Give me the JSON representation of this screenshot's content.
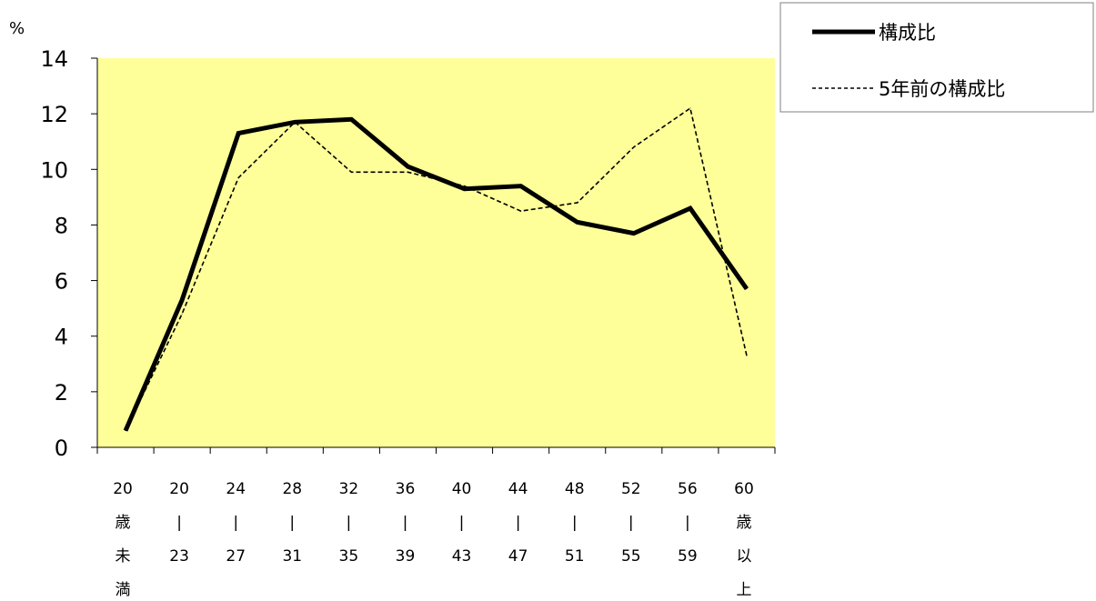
{
  "chart_data": {
    "type": "line",
    "unit_label": "%",
    "categories": [
      [
        "20",
        "歳",
        "未",
        "満"
      ],
      [
        "20",
        "|",
        "23"
      ],
      [
        "24",
        "|",
        "27"
      ],
      [
        "28",
        "|",
        "31"
      ],
      [
        "32",
        "|",
        "35"
      ],
      [
        "36",
        "|",
        "39"
      ],
      [
        "40",
        "|",
        "43"
      ],
      [
        "44",
        "|",
        "47"
      ],
      [
        "48",
        "|",
        "51"
      ],
      [
        "52",
        "|",
        "55"
      ],
      [
        "56",
        "|",
        "59"
      ],
      [
        "60",
        "歳",
        "以",
        "上"
      ]
    ],
    "ylim": [
      0,
      14
    ],
    "yticks": [
      0,
      2,
      4,
      6,
      8,
      10,
      12,
      14
    ],
    "grid": false,
    "plot_background": "#FFFF99",
    "legend_position": "top-right",
    "series": [
      {
        "name": "構成比",
        "values": [
          0.6,
          5.3,
          11.3,
          11.7,
          11.8,
          10.1,
          9.3,
          9.4,
          8.1,
          7.7,
          8.6,
          5.7
        ],
        "color": "#000000",
        "style": "solid"
      },
      {
        "name": "5年前の構成比",
        "values": [
          0.6,
          4.8,
          9.7,
          11.7,
          9.9,
          9.9,
          9.4,
          8.5,
          8.8,
          10.8,
          12.2,
          3.3
        ],
        "color": "#000000",
        "style": "dashed"
      }
    ]
  }
}
